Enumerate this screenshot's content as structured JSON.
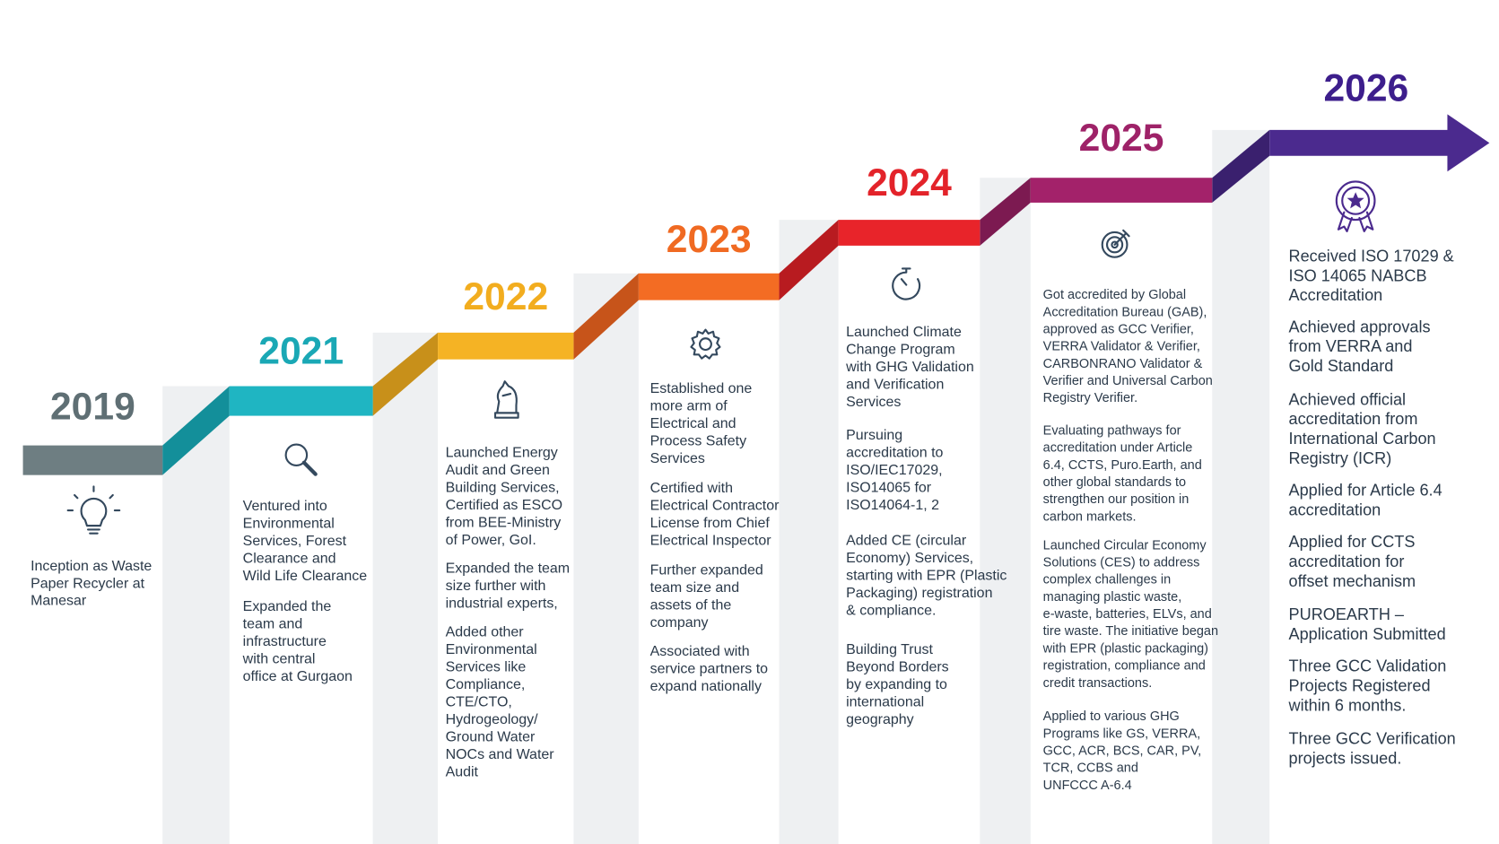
{
  "milestones": [
    {
      "year": "2019",
      "items": [
        [
          "Inception as Waste",
          "Paper Recycler at",
          "Manesar"
        ]
      ]
    },
    {
      "year": "2021",
      "items": [
        [
          "Ventured into",
          "Environmental",
          "Services, Forest",
          "Clearance and",
          "Wild Life Clearance"
        ],
        [
          "Expanded the",
          "team and",
          "infrastructure",
          "with central",
          "office at Gurgaon"
        ]
      ]
    },
    {
      "year": "2022",
      "items": [
        [
          "Launched Energy",
          "Audit and Green",
          "Building Services,",
          "Certified as ESCO",
          "from BEE-Ministry",
          "of Power, GoI."
        ],
        [
          "Expanded the team",
          "size further with",
          "industrial experts,"
        ],
        [
          "Added other",
          "Environmental",
          "Services like",
          "Compliance,",
          "CTE/CTO,",
          "Hydrogeology/",
          "Ground Water",
          "NOCs and Water",
          "Audit"
        ]
      ]
    },
    {
      "year": "2023",
      "items": [
        [
          "Established one",
          "more arm of",
          "Electrical and",
          "Process Safety",
          "Services"
        ],
        [
          "Certified with",
          "Electrical Contractor",
          "License from Chief",
          "Electrical Inspector"
        ],
        [
          "Further expanded",
          "team size and",
          "assets of the",
          "company"
        ],
        [
          "Associated with",
          "service partners to",
          "expand nationally"
        ]
      ]
    },
    {
      "year": "2024",
      "items": [
        [
          "Launched Climate",
          "Change Program",
          "with GHG Validation",
          "and Verification",
          "Services"
        ],
        [
          "Pursuing",
          "accreditation to",
          "ISO/IEC17029,",
          "ISO14065 for",
          "ISO14064-1, 2"
        ],
        [
          "Added CE (circular",
          "Economy) Services,",
          "starting with EPR (Plastic",
          "Packaging) registration",
          "& compliance."
        ],
        [
          "Building Trust",
          "Beyond Borders",
          "by expanding to",
          "international",
          "geography"
        ]
      ]
    },
    {
      "year": "2025",
      "items": [
        [
          "Got accredited by Global",
          "Accreditation Bureau (GAB),",
          "approved as GCC Verifier,",
          "VERRA Validator & Verifier,",
          "CARBONRANO Validator &",
          "Verifier and Universal Carbon",
          "Registry Verifier."
        ],
        [
          "Evaluating pathways for",
          "accreditation under Article",
          "6.4, CCTS, Puro.Earth, and",
          "other global standards to",
          "strengthen our position in",
          "carbon markets."
        ],
        [
          "Launched Circular Economy",
          "Solutions (CES) to address",
          "complex challenges in",
          "managing plastic waste,",
          "e-waste, batteries, ELVs, and",
          "tire waste. The initiative began",
          "with EPR (plastic packaging)",
          "registration, compliance and",
          "credit transactions."
        ],
        [
          "Applied to various GHG",
          "Programs like GS, VERRA,",
          "GCC, ACR, BCS, CAR, PV,",
          "TCR, CCBS and",
          "UNFCCC A-6.4"
        ]
      ]
    },
    {
      "year": "2026",
      "items": [
        [
          "Received ISO 17029 &",
          "ISO 14065 NABCB",
          "Accreditation"
        ],
        [
          "Achieved approvals",
          "from VERRA and",
          "Gold Standard"
        ],
        [
          "Achieved official",
          "accreditation from",
          "International Carbon",
          "Registry (ICR)"
        ],
        [
          "Applied for Article 6.4",
          "accreditation"
        ],
        [
          "Applied for CCTS",
          "accreditation for",
          "offset mechanism"
        ],
        [
          "PUROEARTH –",
          "Application Submitted"
        ],
        [
          "Three GCC Validation",
          "Projects Registered",
          "within 6 months."
        ],
        [
          "Three GCC Verification",
          "projects issued."
        ]
      ]
    }
  ]
}
